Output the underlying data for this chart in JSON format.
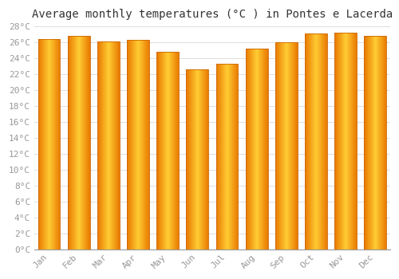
{
  "title": "Average monthly temperatures (°C ) in Pontes e Lacerda",
  "months": [
    "Jan",
    "Feb",
    "Mar",
    "Apr",
    "May",
    "Jun",
    "Jul",
    "Aug",
    "Sep",
    "Oct",
    "Nov",
    "Dec"
  ],
  "values": [
    26.4,
    26.8,
    26.1,
    26.3,
    24.8,
    22.6,
    23.3,
    25.2,
    26.0,
    27.1,
    27.2,
    26.8
  ],
  "bar_color_center": "#FFCC00",
  "bar_color_edge": "#E87800",
  "bar_edge_color": "#CC6600",
  "background_color": "#ffffff",
  "grid_color": "#dddddd",
  "ylim": [
    0,
    28
  ],
  "ytick_step": 2,
  "title_fontsize": 10,
  "tick_fontsize": 8,
  "tick_color": "#999999",
  "font_family": "monospace",
  "bar_width": 0.75
}
